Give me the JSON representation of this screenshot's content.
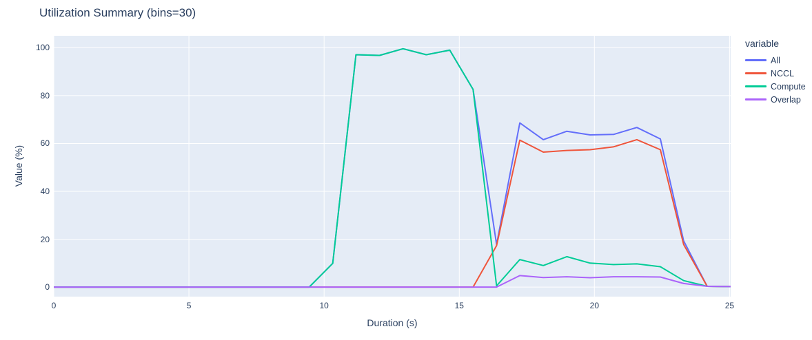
{
  "chart_data": {
    "type": "line",
    "title": "Utilization Summary (bins=30)",
    "xlabel": "Duration (s)",
    "ylabel": "Value (%)",
    "legend_title": "variable",
    "legend_position": "right",
    "grid": true,
    "xlim": [
      0,
      25.04
    ],
    "ylim": [
      -4,
      105
    ],
    "xticks": [
      0,
      5,
      10,
      15,
      20,
      25
    ],
    "yticks": [
      0,
      20,
      40,
      60,
      80,
      100
    ],
    "colors": {
      "plot_background": "#e5ecf6",
      "paper_background": "#ffffff",
      "grid": "#ffffff",
      "text": "#2a3f5f"
    },
    "x": [
      0,
      0.8,
      1.66,
      2.53,
      3.39,
      4.26,
      5.12,
      5.99,
      6.85,
      7.72,
      8.59,
      9.45,
      10.32,
      11.18,
      12.05,
      12.92,
      13.78,
      14.65,
      15.51,
      16.38,
      17.24,
      18.11,
      18.98,
      19.84,
      20.71,
      21.57,
      22.44,
      23.3,
      24.17,
      25.04
    ],
    "series": [
      {
        "name": "All",
        "color": "#636efa",
        "values": [
          0,
          0,
          0,
          0,
          0,
          0,
          0,
          0,
          0,
          0,
          0,
          0,
          9.9,
          97.1,
          96.8,
          99.6,
          97.1,
          99,
          82.6,
          17.8,
          68.6,
          61.6,
          65.1,
          63.6,
          63.8,
          66.7,
          61.9,
          19.3,
          0.3,
          0.2
        ]
      },
      {
        "name": "NCCL",
        "color": "#ef553b",
        "values": [
          0,
          0,
          0,
          0,
          0,
          0,
          0,
          0,
          0,
          0,
          0,
          0,
          0,
          0,
          0,
          0,
          0,
          0,
          0,
          17.3,
          61.4,
          56.4,
          57.1,
          57.4,
          58.6,
          61.6,
          57.4,
          17.8,
          0.3,
          0.2
        ]
      },
      {
        "name": "Compute",
        "color": "#00cc96",
        "values": [
          0,
          0,
          0,
          0,
          0,
          0,
          0,
          0,
          0,
          0,
          0,
          0,
          9.9,
          97.1,
          96.8,
          99.6,
          97.1,
          99,
          82.6,
          0.5,
          11.5,
          9,
          12.7,
          10,
          9.4,
          9.7,
          8.5,
          2.7,
          0.3,
          0.2
        ]
      },
      {
        "name": "Overlap",
        "color": "#ab63fa",
        "values": [
          0,
          0,
          0,
          0,
          0,
          0,
          0,
          0,
          0,
          0,
          0,
          0,
          0,
          0,
          0,
          0,
          0,
          0,
          0,
          0,
          4.8,
          4,
          4.3,
          3.9,
          4.3,
          4.3,
          4.2,
          1.5,
          0.3,
          0.2
        ]
      }
    ]
  }
}
